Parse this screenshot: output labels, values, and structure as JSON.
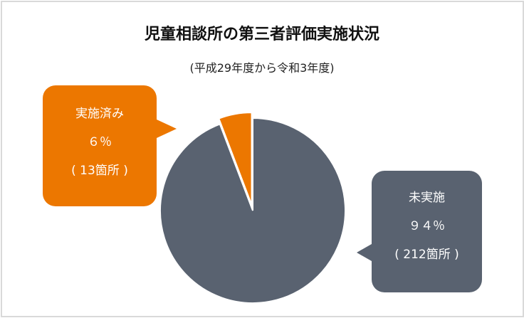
{
  "chart_data": {
    "type": "pie",
    "title": "児童相談所の第三者評価実施状況",
    "subtitle": "(平成29年度から令和3年度)",
    "slices": [
      {
        "label": "実施済み",
        "percent_label": "６％",
        "count_label": "( 13箇所 )",
        "value": 13,
        "percent": 6,
        "color": "#ec7700",
        "exploded": true
      },
      {
        "label": "未実施",
        "percent_label": "９４％",
        "count_label": "( 212箇所 )",
        "value": 212,
        "percent": 94,
        "color": "#596270",
        "exploded": false
      }
    ],
    "legend": "callouts"
  }
}
